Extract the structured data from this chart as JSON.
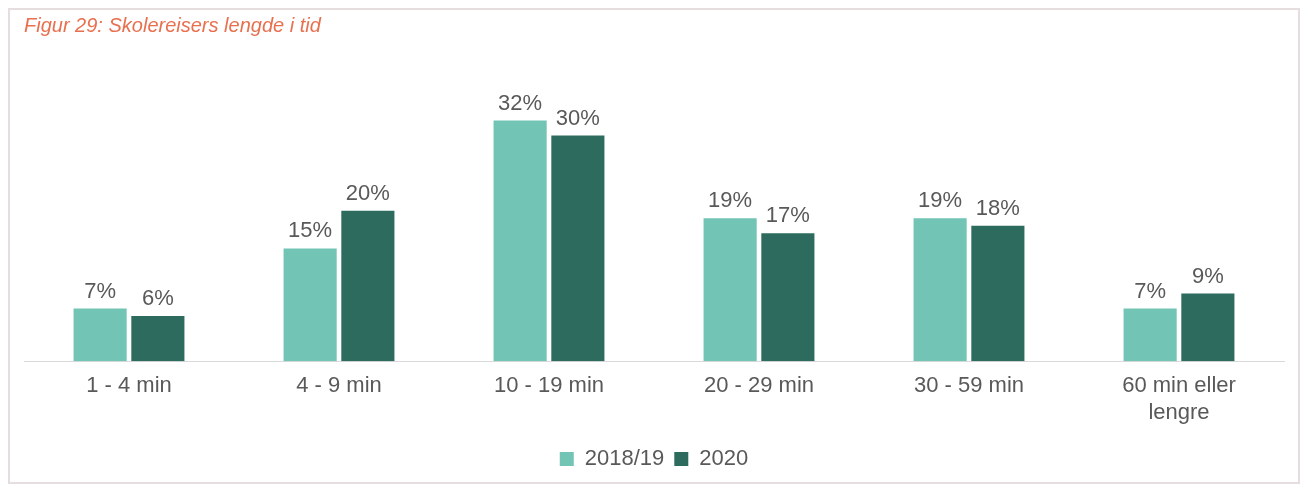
{
  "chart_data": {
    "type": "bar",
    "title": "Figur 29: Skolereisers lengde i tid",
    "categories": [
      "1 - 4 min",
      "4 - 9 min",
      "10 - 19 min",
      "20 - 29 min",
      "30 - 59 min",
      "60 min eller lengre"
    ],
    "series": [
      {
        "name": "2018/19",
        "color": "#72c4b4",
        "values": [
          7,
          15,
          32,
          19,
          19,
          7
        ],
        "value_labels": [
          "7%",
          "15%",
          "32%",
          "19%",
          "19%",
          "7%"
        ]
      },
      {
        "name": "2020",
        "color": "#2d6b5f",
        "values": [
          6,
          20,
          30,
          17,
          18,
          9
        ],
        "value_labels": [
          "6%",
          "20%",
          "30%",
          "17%",
          "18%",
          "9%"
        ]
      }
    ],
    "tick_labels": "x",
    "grid": false,
    "legend": "bottom"
  }
}
